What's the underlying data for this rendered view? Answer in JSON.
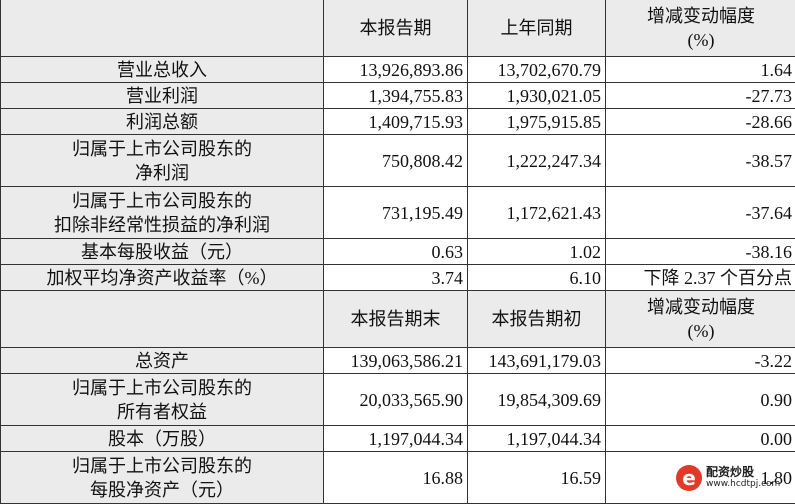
{
  "header1": {
    "col1": "本报告期",
    "col2": "上年同期",
    "col3": "增减变动幅度\n(%)"
  },
  "rows1": [
    {
      "label": "营业总收入",
      "current": "13,926,893.86",
      "previous": "13,702,670.79",
      "change": "1.64"
    },
    {
      "label": "营业利润",
      "current": "1,394,755.83",
      "previous": "1,930,021.05",
      "change": "-27.73"
    },
    {
      "label": "利润总额",
      "current": "1,409,715.93",
      "previous": "1,975,915.85",
      "change": "-28.66"
    },
    {
      "label": "归属于上市公司股东的\n净利润",
      "current": "750,808.42",
      "previous": "1,222,247.34",
      "change": "-38.57"
    },
    {
      "label": "归属于上市公司股东的\n扣除非经常性损益的净利润",
      "current": "731,195.49",
      "previous": "1,172,621.43",
      "change": "-37.64"
    },
    {
      "label": "基本每股收益（元）",
      "current": "0.63",
      "previous": "1.02",
      "change": "-38.16"
    },
    {
      "label": "加权平均净资产收益率（%）",
      "current": "3.74",
      "previous": "6.10",
      "change": "下降 2.37 个百分点"
    }
  ],
  "header2": {
    "col1": "本报告期末",
    "col2": "本报告期初",
    "col3": "增减变动幅度\n(%)"
  },
  "rows2": [
    {
      "label": "总资产",
      "current": "139,063,586.21",
      "previous": "143,691,179.03",
      "change": "-3.22"
    },
    {
      "label": "归属于上市公司股东的\n所有者权益",
      "current": "20,033,565.90",
      "previous": "19,854,309.69",
      "change": "0.90"
    },
    {
      "label": "股本（万股）",
      "current": "1,197,044.34",
      "previous": "1,197,044.34",
      "change": "0.00"
    },
    {
      "label": "归属于上市公司股东的\n每股净资产（元）",
      "current": "16.88",
      "previous": "16.59",
      "change": "1.80"
    }
  ],
  "watermark": {
    "title": "配资炒股",
    "url": "www.hcdtpj.com",
    "logo_color": "#e03a2a"
  }
}
